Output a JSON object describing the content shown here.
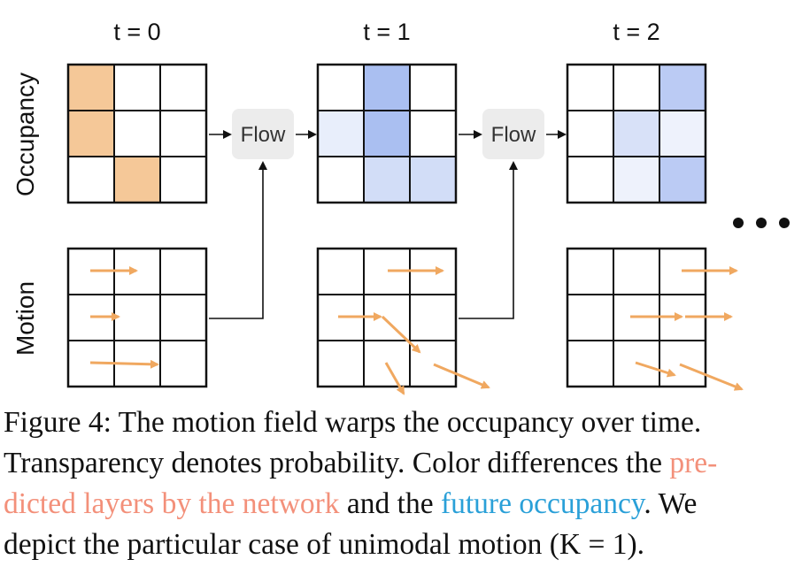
{
  "time_labels": [
    "t = 0",
    "t = 1",
    "t = 2"
  ],
  "row_labels": {
    "occupancy": "Occupancy",
    "motion": "Motion"
  },
  "flow_label": "Flow",
  "colors": {
    "predicted": "#f5c898",
    "future": "#8ea9ec",
    "arrow": "#f0a860",
    "flow_box": "#ececec"
  },
  "occupancy": [
    [
      [
        1,
        0,
        0
      ],
      [
        1,
        0,
        0
      ],
      [
        0,
        1,
        0
      ]
    ],
    [
      [
        0,
        0.75,
        0
      ],
      [
        0.2,
        0.75,
        0
      ],
      [
        0,
        0.4,
        0.4
      ]
    ],
    [
      [
        0,
        0,
        0.6
      ],
      [
        0,
        0.35,
        0.15
      ],
      [
        0,
        0.15,
        0.6
      ]
    ]
  ],
  "caption": {
    "line1": "Figure 4: The motion field warps the occupancy over time.",
    "line2_a": "Transparency denotes probability. Color differences the ",
    "line2_b": "pre-",
    "line3_a": "dicted layers by the network",
    "line3_b": " and the ",
    "line3_c": "future occupancy",
    "line3_d": ". We",
    "line4": "depict the particular case of unimodal motion (K = 1)."
  }
}
